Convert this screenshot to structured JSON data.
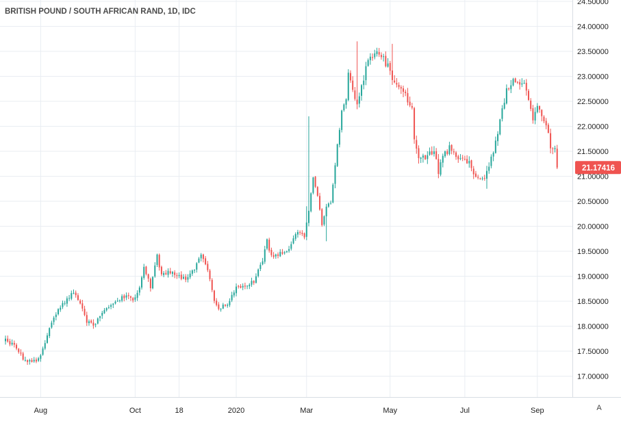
{
  "chart_data": {
    "type": "candlestick",
    "title": "BRITISH POUND / SOUTH AFRICAN RAND, 1D, IDC",
    "xlabel": "",
    "ylabel": "",
    "ylim": [
      16.5,
      24.5
    ],
    "y_ticks": [
      "24.50000",
      "24.00000",
      "23.50000",
      "23.00000",
      "22.50000",
      "22.00000",
      "21.50000",
      "21.00000",
      "20.50000",
      "20.00000",
      "19.50000",
      "19.00000",
      "18.50000",
      "18.00000",
      "17.50000",
      "17.00000"
    ],
    "x_ticks": [
      {
        "label": "Aug",
        "index": 16
      },
      {
        "label": "Oct",
        "index": 59
      },
      {
        "label": "18",
        "index": 79
      },
      {
        "label": "2020",
        "index": 105
      },
      {
        "label": "Mar",
        "index": 137
      },
      {
        "label": "May",
        "index": 175
      },
      {
        "label": "Jul",
        "index": 209
      },
      {
        "label": "Sep",
        "index": 242
      }
    ],
    "last_price": "21.17416",
    "colors": {
      "up": "#26a69a",
      "down": "#ef5350",
      "grid": "#e9edf2",
      "price_label": "#ef5350"
    },
    "axis_badge": "A",
    "anchors": [
      [
        0,
        17.75
      ],
      [
        5,
        17.55
      ],
      [
        9,
        17.3
      ],
      [
        13,
        17.3
      ],
      [
        16,
        17.4
      ],
      [
        20,
        18.0
      ],
      [
        25,
        18.4
      ],
      [
        31,
        18.7
      ],
      [
        34,
        18.45
      ],
      [
        37,
        18.1
      ],
      [
        40,
        18.0
      ],
      [
        45,
        18.3
      ],
      [
        50,
        18.5
      ],
      [
        54,
        18.6
      ],
      [
        58,
        18.55
      ],
      [
        61,
        18.75
      ],
      [
        63,
        19.15
      ],
      [
        66,
        18.8
      ],
      [
        69,
        19.4
      ],
      [
        71,
        19.0
      ],
      [
        74,
        19.1
      ],
      [
        78,
        19.0
      ],
      [
        82,
        18.95
      ],
      [
        86,
        19.15
      ],
      [
        89,
        19.4
      ],
      [
        92,
        19.15
      ],
      [
        95,
        18.5
      ],
      [
        97,
        18.35
      ],
      [
        101,
        18.45
      ],
      [
        105,
        18.8
      ],
      [
        109,
        18.8
      ],
      [
        113,
        18.9
      ],
      [
        117,
        19.3
      ],
      [
        119,
        19.7
      ],
      [
        121,
        19.4
      ],
      [
        125,
        19.45
      ],
      [
        129,
        19.55
      ],
      [
        133,
        19.9
      ],
      [
        136,
        19.8
      ],
      [
        138,
        20.3
      ],
      [
        140,
        21.0
      ],
      [
        142,
        20.6
      ],
      [
        144,
        20.0
      ],
      [
        146,
        20.4
      ],
      [
        148,
        20.5
      ],
      [
        151,
        21.6
      ],
      [
        153,
        22.3
      ],
      [
        155,
        22.6
      ],
      [
        156,
        23.1
      ],
      [
        158,
        22.7
      ],
      [
        160,
        22.4
      ],
      [
        162,
        22.8
      ],
      [
        165,
        23.3
      ],
      [
        168,
        23.5
      ],
      [
        171,
        23.4
      ],
      [
        174,
        23.2
      ],
      [
        176,
        22.9
      ],
      [
        179,
        22.8
      ],
      [
        182,
        22.6
      ],
      [
        185,
        22.4
      ],
      [
        186,
        21.8
      ],
      [
        188,
        21.4
      ],
      [
        192,
        21.4
      ],
      [
        195,
        21.5
      ],
      [
        197,
        21.1
      ],
      [
        199,
        21.4
      ],
      [
        202,
        21.55
      ],
      [
        205,
        21.4
      ],
      [
        208,
        21.3
      ],
      [
        211,
        21.3
      ],
      [
        214,
        21.0
      ],
      [
        217,
        20.95
      ],
      [
        220,
        21.15
      ],
      [
        222,
        21.5
      ],
      [
        225,
        22.1
      ],
      [
        228,
        22.7
      ],
      [
        231,
        22.9
      ],
      [
        234,
        22.85
      ],
      [
        236,
        22.8
      ],
      [
        238,
        22.5
      ],
      [
        240,
        22.1
      ],
      [
        242,
        22.4
      ],
      [
        244,
        22.2
      ],
      [
        246,
        22.0
      ],
      [
        248,
        21.6
      ],
      [
        250,
        21.5
      ],
      [
        251,
        21.17416
      ]
    ],
    "spikes": [
      [
        138,
        22.2
      ],
      [
        137,
        20.4
      ],
      [
        141,
        20.9
      ],
      [
        146,
        19.7
      ],
      [
        160,
        23.7
      ],
      [
        176,
        23.65
      ],
      [
        219,
        20.75
      ]
    ]
  }
}
